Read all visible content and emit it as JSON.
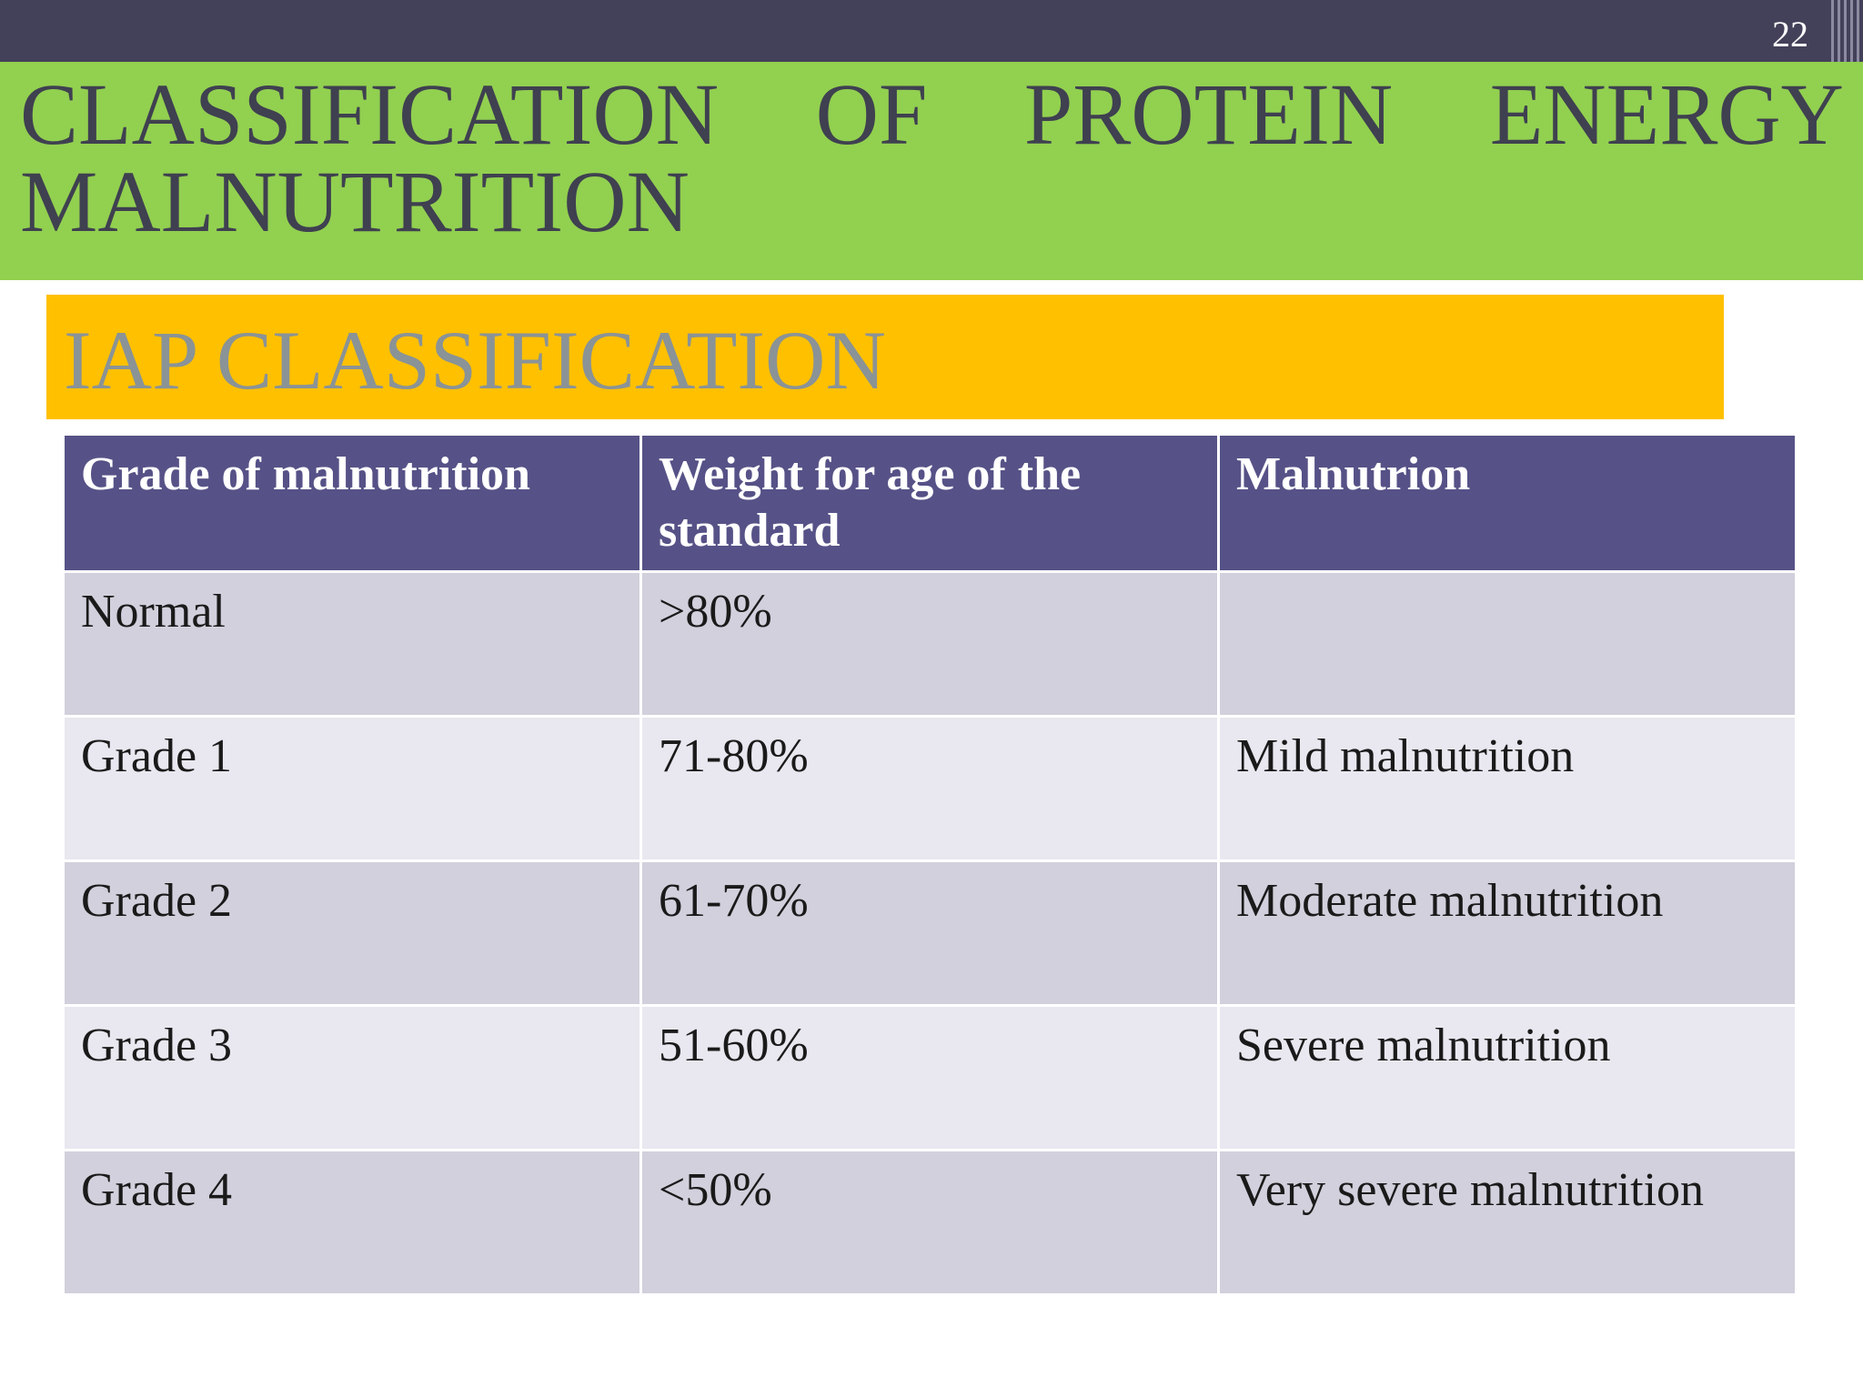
{
  "slide": {
    "number": "22",
    "title": "CLASSIFICATION OF PROTEIN ENERGY MALNUTRITION",
    "subtitle": "IAP CLASSIFICATION"
  },
  "colors": {
    "top_bar": "#434059",
    "title_band": "#92d050",
    "subtitle_band": "#ffc000",
    "table_header": "#565287",
    "row_dark": "#d1d0dc",
    "row_light": "#e9e7ef"
  },
  "table": {
    "headers": [
      "Grade of malnutrition",
      "Weight for age of the standard",
      "Malnutrion"
    ],
    "rows": [
      [
        "Normal",
        ">80%",
        ""
      ],
      [
        "Grade 1",
        "71-80%",
        "Mild malnutrition"
      ],
      [
        "Grade 2",
        "61-70%",
        "Moderate malnutrition"
      ],
      [
        "Grade 3",
        "51-60%",
        "Severe malnutrition"
      ],
      [
        "Grade 4",
        "<50%",
        "Very severe malnutrition"
      ]
    ]
  }
}
